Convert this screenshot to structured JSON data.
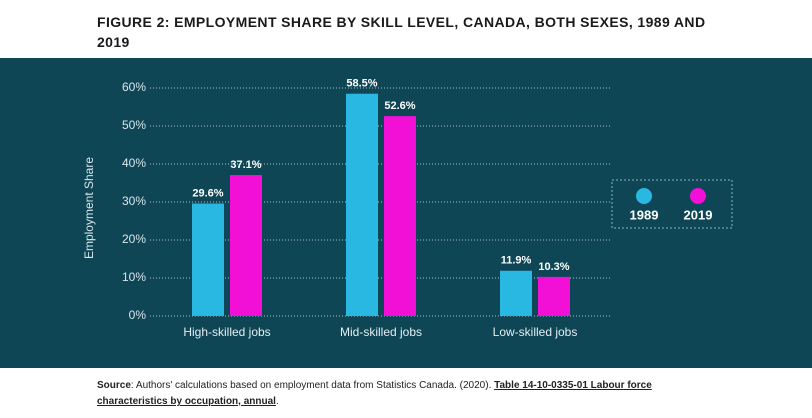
{
  "chart_data": {
    "type": "bar",
    "title": "FIGURE 2: EMPLOYMENT SHARE BY SKILL LEVEL, CANADA, BOTH SEXES, 1989 AND 2019",
    "y_label": "Employment Share",
    "categories": [
      "High-skilled jobs",
      "Mid-skilled jobs",
      "Low-skilled jobs"
    ],
    "series": [
      {
        "name": "1989",
        "color": "#29b8e2",
        "values": [
          29.6,
          58.5,
          11.9
        ],
        "value_labels": [
          "29.6%",
          "58.5%",
          "11.9%"
        ]
      },
      {
        "name": "2019",
        "color": "#f20fd6",
        "values": [
          37.1,
          52.6,
          10.3
        ],
        "value_labels": [
          "37.1%",
          "52.6%",
          "10.3%"
        ]
      }
    ],
    "ylim": [
      0,
      60
    ],
    "yticks": [
      {
        "value": 0,
        "label": "0%"
      },
      {
        "value": 10,
        "label": "10%"
      },
      {
        "value": 20,
        "label": "20%"
      },
      {
        "value": 30,
        "label": "30%"
      },
      {
        "value": 40,
        "label": "40%"
      },
      {
        "value": 50,
        "label": "50%"
      },
      {
        "value": 60,
        "label": "60%"
      }
    ],
    "grid": true,
    "legend": "right",
    "source": {
      "label": "Source",
      "text": ": Authors' calculations based on employment data from Statistics Canada. (2020). ",
      "link": "Table 14-10-0335-01 Labour force characteristics by occupation, annual",
      "end": "."
    }
  }
}
